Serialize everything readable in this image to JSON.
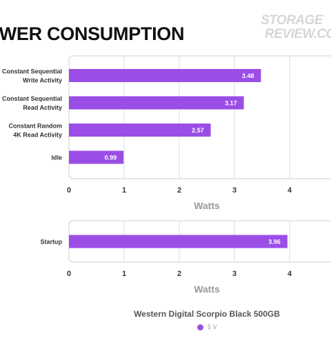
{
  "title": "OWER CONSUMPTION",
  "logo": {
    "line1": "STORAGE",
    "line2": "REVIEW.CO"
  },
  "accent_color": "#9a4ee6",
  "chart_data": [
    {
      "type": "bar",
      "orientation": "horizontal",
      "categories": [
        [
          "Constant Sequential",
          "Write Activity"
        ],
        [
          "Constant Sequential",
          "Read Activity"
        ],
        [
          "Constant Random",
          "4K Read Activity"
        ],
        [
          "Idle"
        ]
      ],
      "values": [
        3.48,
        3.17,
        2.57,
        0.99
      ],
      "value_labels": [
        "3.48",
        "3.17",
        "2.57",
        "0.99"
      ],
      "xlabel": "Watts",
      "ticks": [
        "0",
        "1",
        "2",
        "3",
        "4"
      ],
      "xlim": [
        0,
        4
      ],
      "grid": true
    },
    {
      "type": "bar",
      "orientation": "horizontal",
      "categories": [
        [
          "Startup"
        ]
      ],
      "values": [
        3.96
      ],
      "value_labels": [
        "3.96"
      ],
      "xlabel": "Watts",
      "ticks": [
        "0",
        "1",
        "2",
        "3",
        "4"
      ],
      "xlim": [
        0,
        4
      ],
      "grid": true
    }
  ],
  "footer": {
    "title": "Western Digital Scorpio Black 500GB",
    "legend": [
      {
        "label": "5 V",
        "color": "#9a4ee6"
      }
    ]
  }
}
